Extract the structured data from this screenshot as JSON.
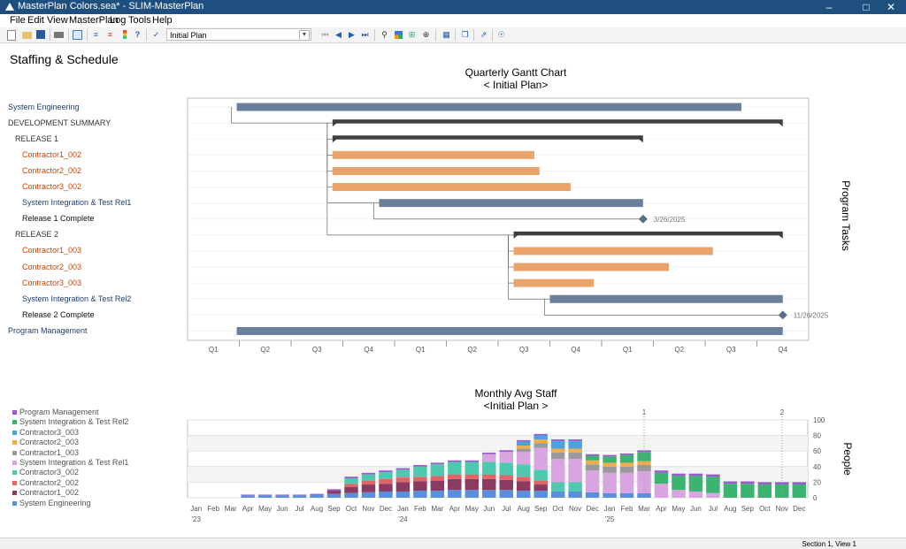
{
  "window": {
    "title": "MasterPlan Colors.sea* - SLIM-MasterPlan"
  },
  "menu": [
    "File",
    "Edit",
    "View",
    "MasterPlan",
    "Log",
    "Tools",
    "Help"
  ],
  "toolbar": {
    "plan_select": "Initial Plan"
  },
  "page_title": "Staffing & Schedule",
  "gantt": {
    "title": "Quarterly Gantt Chart",
    "subtitle": "< Initial Plan>",
    "right_label": "Program Tasks",
    "quarters": [
      "Q1",
      "Q2",
      "Q3",
      "Q4",
      "Q1",
      "Q2",
      "Q3",
      "Q4",
      "Q1",
      "Q2",
      "Q3",
      "Q4"
    ],
    "tasks": [
      {
        "name": "System Engineering",
        "indent": 0,
        "kind": "task",
        "color": "#6a7f9b",
        "start": 0.95,
        "end": 10.7
      },
      {
        "name": "DEVELOPMENT SUMMARY",
        "indent": 0,
        "kind": "summary",
        "color": "#404040",
        "start": 2.8,
        "end": 11.5
      },
      {
        "name": "RELEASE 1",
        "indent": 1,
        "kind": "summary",
        "color": "#404040",
        "start": 2.8,
        "end": 8.8
      },
      {
        "name": "Contractor1_002",
        "indent": 2,
        "kind": "task",
        "color": "#e8a46a",
        "start": 2.8,
        "end": 6.7
      },
      {
        "name": "Contractor2_002",
        "indent": 2,
        "kind": "task",
        "color": "#e8a46a",
        "start": 2.8,
        "end": 6.8
      },
      {
        "name": "Contractor3_002",
        "indent": 2,
        "kind": "task",
        "color": "#e8a46a",
        "start": 2.8,
        "end": 7.4
      },
      {
        "name": "System Integration & Test Rel1",
        "indent": 2,
        "kind": "task",
        "color": "#6a7f9b",
        "start": 3.7,
        "end": 8.8
      },
      {
        "name": "Release 1 Complete",
        "indent": 2,
        "kind": "milestone",
        "color": "#5a6f8c",
        "start": 8.8,
        "end": 8.8,
        "label": "3/26/2025"
      },
      {
        "name": "RELEASE 2",
        "indent": 1,
        "kind": "summary",
        "color": "#404040",
        "start": 6.3,
        "end": 11.5
      },
      {
        "name": "Contractor1_003",
        "indent": 2,
        "kind": "task",
        "color": "#e8a46a",
        "start": 6.3,
        "end": 10.15
      },
      {
        "name": "Contractor2_003",
        "indent": 2,
        "kind": "task",
        "color": "#e8a46a",
        "start": 6.3,
        "end": 9.3
      },
      {
        "name": "Contractor3_003",
        "indent": 2,
        "kind": "task",
        "color": "#e8a46a",
        "start": 6.3,
        "end": 7.85
      },
      {
        "name": "System Integration & Test Rel2",
        "indent": 2,
        "kind": "task",
        "color": "#6a7f9b",
        "start": 7.0,
        "end": 11.5
      },
      {
        "name": "Release 2 Complete",
        "indent": 2,
        "kind": "milestone",
        "color": "#5a6f8c",
        "start": 11.5,
        "end": 11.5,
        "label": "11/26/2025"
      },
      {
        "name": "Program Management",
        "indent": 0,
        "kind": "task",
        "color": "#6a7f9b",
        "start": 0.95,
        "end": 11.5
      }
    ]
  },
  "chart_data": {
    "type": "bar",
    "stacked": true,
    "title": "Monthly Avg Staff",
    "subtitle": "<Initial Plan >",
    "ylabel": "People",
    "ylim": [
      0,
      100
    ],
    "yticks": [
      0,
      20,
      40,
      60,
      80,
      100
    ],
    "categories": [
      "Jan",
      "Feb",
      "Mar",
      "Apr",
      "May",
      "Jun",
      "Jul",
      "Aug",
      "Sep",
      "Oct",
      "Nov",
      "Dec",
      "Jan",
      "Feb",
      "Mar",
      "Apr",
      "May",
      "Jun",
      "Jul",
      "Aug",
      "Sep",
      "Oct",
      "Nov",
      "Dec",
      "Jan",
      "Feb",
      "Mar",
      "Apr",
      "May",
      "Jun",
      "Jul",
      "Aug",
      "Sep",
      "Oct",
      "Nov",
      "Dec"
    ],
    "year_labels": [
      {
        "index": 0,
        "label": "'23"
      },
      {
        "index": 12,
        "label": "'24"
      },
      {
        "index": 24,
        "label": "'25"
      }
    ],
    "markers": [
      {
        "index": 26.5,
        "label": "1"
      },
      {
        "index": 34.5,
        "label": "2"
      }
    ],
    "series": [
      {
        "name": "System Engineering",
        "color": "#5b8fd9",
        "values": [
          0,
          0,
          0,
          3,
          3,
          3,
          3,
          4,
          5,
          6,
          7,
          8,
          8,
          9,
          9,
          10,
          10,
          10,
          10,
          9,
          9,
          8,
          8,
          7,
          6,
          6,
          6,
          0,
          0,
          0,
          0,
          0,
          0,
          0,
          0,
          0
        ]
      },
      {
        "name": "Contractor1_002",
        "color": "#8b3a62",
        "values": [
          0,
          0,
          0,
          0,
          0,
          0,
          0,
          0,
          4,
          8,
          10,
          10,
          12,
          12,
          13,
          14,
          14,
          14,
          13,
          12,
          8,
          0,
          0,
          0,
          0,
          0,
          0,
          0,
          0,
          0,
          0,
          0,
          0,
          0,
          0,
          0
        ]
      },
      {
        "name": "Contractor2_002",
        "color": "#e06666",
        "values": [
          0,
          0,
          0,
          0,
          0,
          0,
          0,
          0,
          0,
          4,
          5,
          6,
          6,
          6,
          6,
          6,
          6,
          6,
          6,
          6,
          5,
          0,
          0,
          0,
          0,
          0,
          0,
          0,
          0,
          0,
          0,
          0,
          0,
          0,
          0,
          0
        ]
      },
      {
        "name": "Contractor3_002",
        "color": "#4ec9b0",
        "values": [
          0,
          0,
          0,
          0,
          0,
          0,
          0,
          0,
          0,
          7,
          8,
          9,
          10,
          13,
          15,
          16,
          16,
          16,
          16,
          16,
          14,
          12,
          12,
          0,
          0,
          0,
          0,
          0,
          0,
          0,
          0,
          0,
          0,
          0,
          0,
          0
        ]
      },
      {
        "name": "System Integration & Test Rel1",
        "color": "#d9a5e0",
        "values": [
          0,
          0,
          0,
          0,
          0,
          0,
          0,
          0,
          0,
          0,
          0,
          0,
          0,
          0,
          0,
          0,
          0,
          10,
          14,
          16,
          28,
          30,
          30,
          28,
          26,
          26,
          28,
          18,
          10,
          8,
          6,
          0,
          0,
          0,
          0,
          0
        ]
      },
      {
        "name": "Contractor1_003",
        "color": "#9a9a9a",
        "values": [
          0,
          0,
          0,
          0,
          0,
          0,
          0,
          0,
          0,
          0,
          0,
          0,
          0,
          0,
          0,
          0,
          0,
          0,
          0,
          4,
          6,
          8,
          8,
          8,
          8,
          8,
          8,
          0,
          0,
          0,
          0,
          0,
          0,
          0,
          0,
          0
        ]
      },
      {
        "name": "Contractor2_003",
        "color": "#f0ad4e",
        "values": [
          0,
          0,
          0,
          0,
          0,
          0,
          0,
          0,
          0,
          0,
          0,
          0,
          0,
          0,
          0,
          0,
          0,
          0,
          0,
          4,
          5,
          5,
          5,
          5,
          5,
          5,
          5,
          0,
          0,
          0,
          0,
          0,
          0,
          0,
          0,
          0
        ]
      },
      {
        "name": "Contractor3_003",
        "color": "#4aa3df",
        "values": [
          0,
          0,
          0,
          0,
          0,
          0,
          0,
          0,
          0,
          0,
          0,
          0,
          0,
          0,
          0,
          0,
          0,
          0,
          0,
          5,
          5,
          10,
          10,
          0,
          0,
          0,
          0,
          0,
          0,
          0,
          0,
          0,
          0,
          0,
          0,
          0
        ]
      },
      {
        "name": "System Integration & Test Rel2",
        "color": "#3cb371",
        "values": [
          0,
          0,
          0,
          0,
          0,
          0,
          0,
          0,
          0,
          0,
          0,
          0,
          0,
          0,
          0,
          0,
          0,
          0,
          0,
          0,
          0,
          0,
          0,
          6,
          8,
          10,
          12,
          14,
          18,
          20,
          21,
          18,
          18,
          17,
          17,
          17
        ]
      },
      {
        "name": "Program Management",
        "color": "#9b59d0",
        "values": [
          0,
          0,
          0,
          1,
          1,
          1,
          1,
          1,
          2,
          2,
          2,
          2,
          2,
          2,
          2,
          2,
          2,
          2,
          2,
          2,
          2,
          2,
          2,
          2,
          2,
          2,
          2,
          3,
          3,
          3,
          3,
          3,
          3,
          3,
          3,
          3
        ]
      }
    ]
  },
  "status": {
    "section": "Section 1, View 1"
  }
}
